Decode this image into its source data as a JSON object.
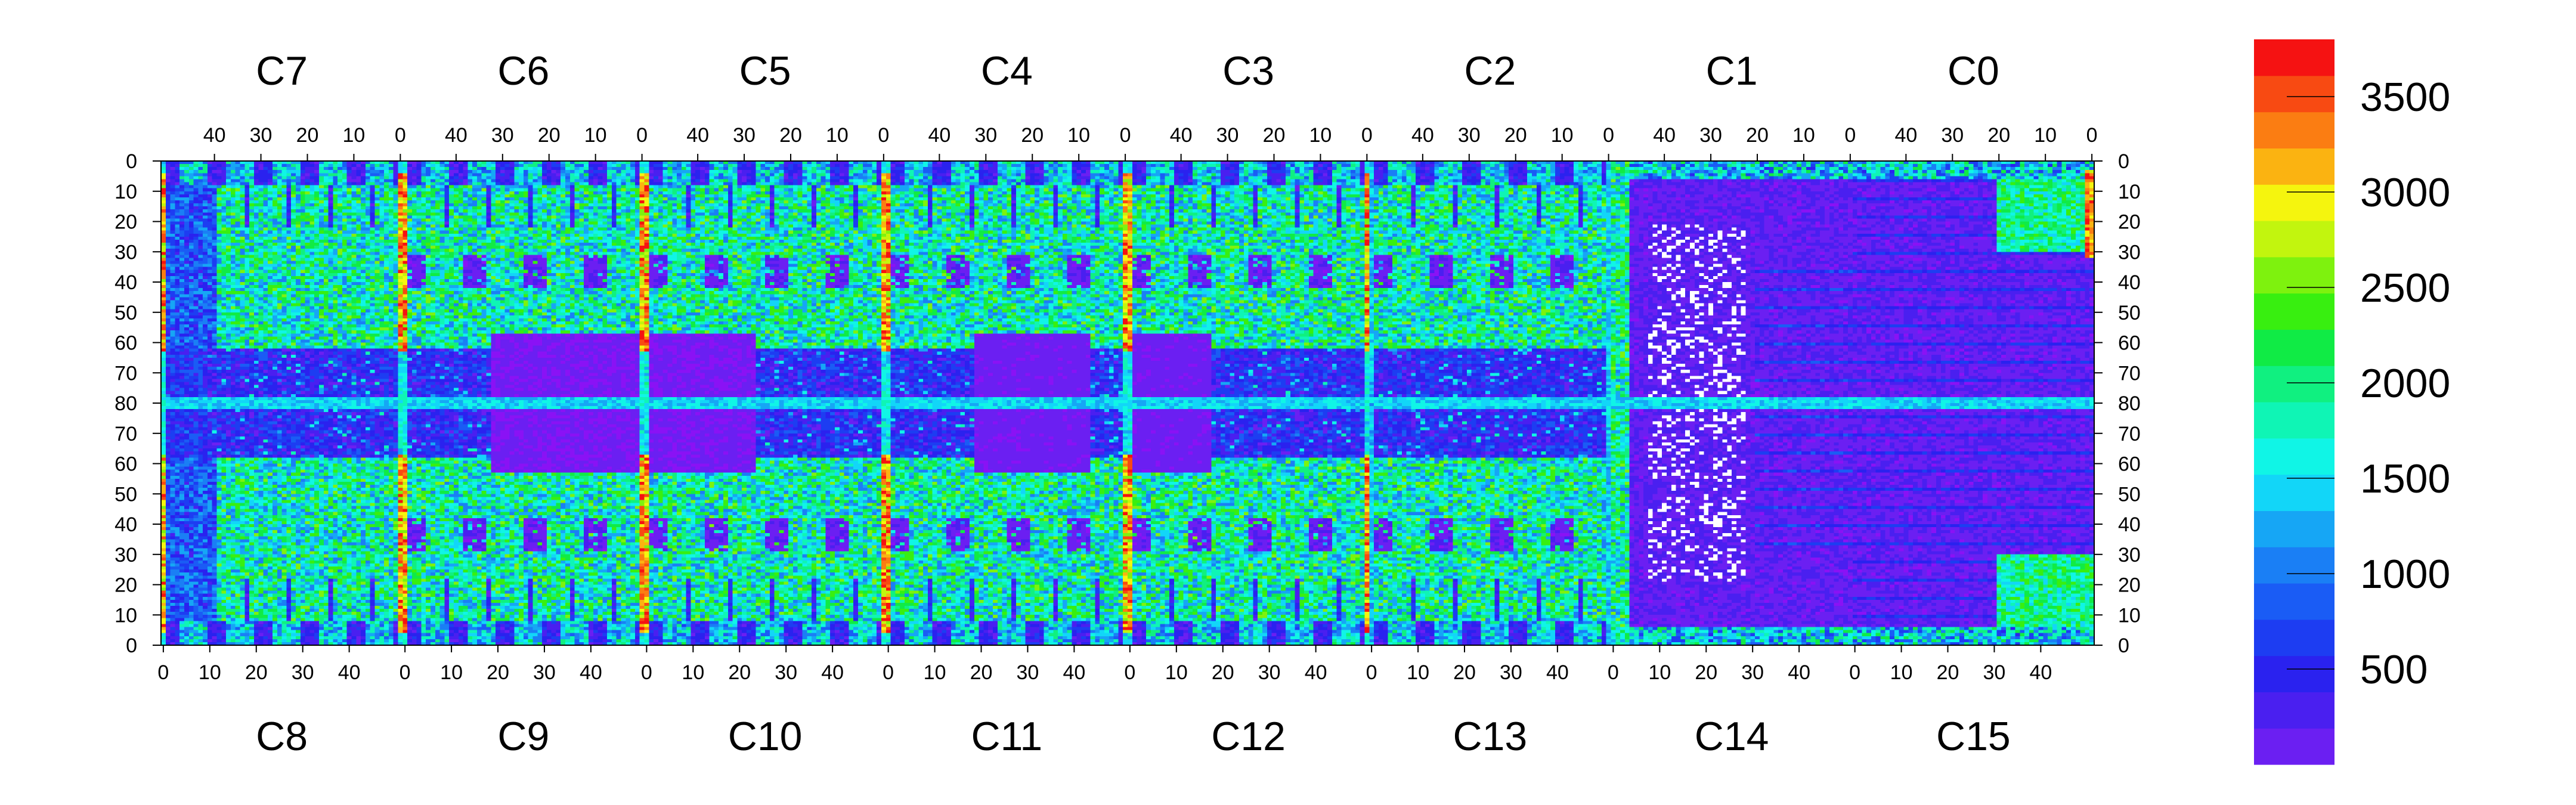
{
  "chart_data": {
    "type": "heatmap",
    "title": "",
    "chip_labels_top": [
      "C7",
      "C6",
      "C5",
      "C4",
      "C3",
      "C2",
      "C1",
      "C0"
    ],
    "chip_labels_bottom": [
      "C8",
      "C9",
      "C10",
      "C11",
      "C12",
      "C13",
      "C14",
      "C15"
    ],
    "chip_columns": 52,
    "x_top_ticks": [
      "40",
      "30",
      "20",
      "10",
      "0"
    ],
    "x_top_tick_values": [
      40,
      30,
      20,
      10,
      0
    ],
    "x_bottom_ticks": [
      "0",
      "10",
      "20",
      "30",
      "40"
    ],
    "x_bottom_tick_values": [
      0,
      10,
      20,
      30,
      40
    ],
    "y_ticks_top_half": [
      "0",
      "10",
      "20",
      "30",
      "40",
      "50",
      "60",
      "70",
      "80"
    ],
    "y_ticks_bottom_half": [
      "70",
      "60",
      "50",
      "40",
      "30",
      "20",
      "10",
      "0"
    ],
    "rows_per_half": 80,
    "colorbar": {
      "ticks": [
        "500",
        "1000",
        "1500",
        "2000",
        "2500",
        "3000",
        "3500"
      ],
      "tick_values": [
        500,
        1000,
        1500,
        2000,
        2500,
        3000,
        3500
      ],
      "range": [
        0,
        3800
      ],
      "levels": 20,
      "colors": [
        "#8a12f5",
        "#6b1ff2",
        "#4a1ff0",
        "#2a22ef",
        "#1d3df2",
        "#1a5cf5",
        "#1a7ff5",
        "#16a6f5",
        "#12d6f8",
        "#10f5e6",
        "#0ff5b5",
        "#10f080",
        "#10eb45",
        "#38ef10",
        "#7ef20e",
        "#c2f50e",
        "#f5f50e",
        "#fbb311",
        "#fb7d12",
        "#f84a12",
        "#f51212"
      ]
    },
    "noisy_region_color": "#ffffff"
  }
}
